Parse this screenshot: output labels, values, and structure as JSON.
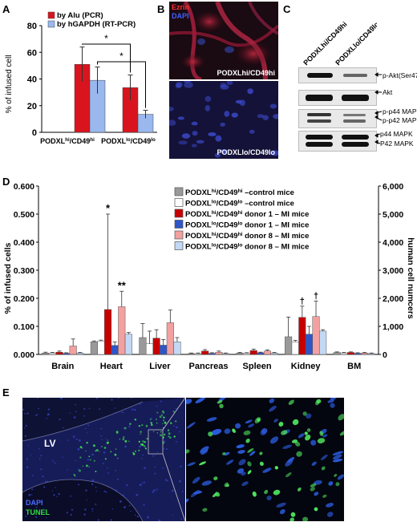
{
  "panel_labels": {
    "a": "A",
    "b": "B",
    "c": "C",
    "d": "D",
    "e": "E"
  },
  "chart_data": [
    {
      "type": "bar",
      "panel": "A",
      "categories": [
        "PODXLhi/CD49hi",
        "PODXLlo/CD49lo"
      ],
      "series": [
        {
          "name": "by Alu (PCR)",
          "values": [
            51,
            33.5
          ],
          "errors": [
            13,
            9.5
          ],
          "color": "#d9141e"
        },
        {
          "name": "by hGAPDH (RT-PCR)",
          "values": [
            39,
            13.5
          ],
          "errors": [
            10,
            3
          ],
          "color": "#9ab8ee"
        }
      ],
      "ylabel": "% of infused cell",
      "ylim": [
        0,
        80
      ],
      "yticks": [
        0,
        20,
        40,
        60,
        80
      ],
      "annotations": [
        "*",
        "*"
      ],
      "legend": "top-left"
    },
    {
      "type": "bar",
      "panel": "D",
      "categories": [
        "Brain",
        "Heart",
        "Liver",
        "Pancreas",
        "Spleen",
        "Kidney",
        "BM"
      ],
      "series": [
        {
          "name": "PODXLhi/CD49hi –control mice",
          "color": "#999999",
          "values": [
            0.005,
            0.045,
            0.06,
            0.003,
            0.005,
            0.063,
            0.007
          ],
          "errors": [
            0.003,
            0.003,
            0.05,
            0.002,
            0.002,
            0.07,
            0.002
          ]
        },
        {
          "name": "PODXLlo/CD49lo –control mice",
          "color": "#ffffff",
          "values": [
            0.005,
            0.048,
            0.038,
            0.003,
            0.004,
            0.045,
            0.005
          ],
          "errors": [
            0.002,
            0.003,
            0.045,
            0.002,
            0.002,
            0.005,
            0.002
          ]
        },
        {
          "name": "PODXLhi/CD49hi donor 1 – MI mice",
          "color": "#c80000",
          "values": [
            0.008,
            0.16,
            0.058,
            0.012,
            0.014,
            0.132,
            0.007
          ],
          "errors": [
            0.004,
            0.34,
            0.03,
            0.005,
            0.005,
            0.04,
            0.002
          ]
        },
        {
          "name": "PODXLlo/CD49lo donor 1 – MI mice",
          "color": "#2f55c8",
          "values": [
            0.004,
            0.032,
            0.033,
            0.004,
            0.006,
            0.072,
            0.004
          ],
          "errors": [
            0.002,
            0.012,
            0.02,
            0.002,
            0.002,
            0.028,
            0.002
          ]
        },
        {
          "name": "PODXLhi/CD49hi donor 8 – MI mice",
          "color": "#f2a0a0",
          "values": [
            0.03,
            0.17,
            0.113,
            0.008,
            0.012,
            0.135,
            0.005
          ],
          "errors": [
            0.025,
            0.055,
            0.045,
            0.004,
            0.004,
            0.055,
            0.002
          ]
        },
        {
          "name": "PODXLlo/CD49lo donor 8 – MI mice",
          "color": "#c2d8f4",
          "values": [
            0.005,
            0.072,
            0.045,
            0.003,
            0.005,
            0.083,
            0.003
          ],
          "errors": [
            0.002,
            0.006,
            0.015,
            0.002,
            0.002,
            0.005,
            0.002
          ]
        }
      ],
      "ylabel": "% of infused cells",
      "y2label": "human cell numcers",
      "ylim": [
        0,
        0.6
      ],
      "yticks": [
        "0.000",
        "0.100",
        "0.200",
        "0.300",
        "0.400",
        "0.500",
        "0.600"
      ],
      "y2ticks": [
        "0",
        "1,000",
        "2,000",
        "3,000",
        "4,000",
        "5,000",
        "6,000"
      ],
      "annotations": {
        "heart": [
          "*",
          "**"
        ],
        "kidney": [
          "†",
          "†"
        ]
      },
      "legend": "top-right"
    }
  ],
  "panel_b": {
    "ezrin_label": "Ezrin",
    "dapi_label": "DAPI",
    "top_caption": "PODXLhi/CD49hi",
    "bottom_caption": "PODXLlo/CD49lo"
  },
  "panel_c": {
    "lane1": "PODXLhi/CD49hi",
    "lane2": "PODXLlo/CD49lo",
    "rows": [
      {
        "label": "p-Akt(Ser473)"
      },
      {
        "label": "Akt"
      },
      {
        "label": "p-p44 MAPK",
        "label2": "p-p42 MAPK"
      },
      {
        "label": "p44 MAPK",
        "label2": "P42 MAPK"
      }
    ]
  },
  "panel_e": {
    "lv_label": "LV",
    "dapi_label": "DAPI",
    "tunel_label": "TUNEL"
  }
}
